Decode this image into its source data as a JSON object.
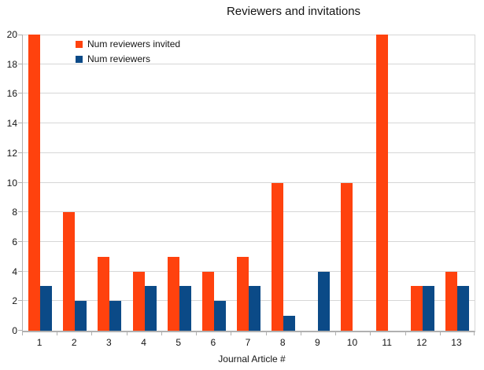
{
  "chart_data": {
    "type": "bar",
    "title": "Reviewers and invitations",
    "xlabel": "Journal Article #",
    "ylabel": "",
    "ylim": [
      0,
      20
    ],
    "ytick_step": 2,
    "grid": true,
    "legend_position": "top-left-inside",
    "categories": [
      "1",
      "2",
      "3",
      "4",
      "5",
      "6",
      "7",
      "8",
      "9",
      "10",
      "11",
      "12",
      "13"
    ],
    "series": [
      {
        "name": "Num reviewers invited",
        "color": "#FF420E",
        "values": [
          20,
          8,
          5,
          4,
          5,
          4,
          5,
          10,
          0,
          10,
          20,
          3,
          4
        ]
      },
      {
        "name": "Num reviewers",
        "color": "#0B4A87",
        "values": [
          3,
          2,
          2,
          3,
          3,
          2,
          3,
          1,
          4,
          0,
          0,
          3,
          3
        ]
      }
    ],
    "colors": {
      "axis": "#B0B0B0",
      "gridline": "#D6D6D6",
      "text": "#141414",
      "background": "#FFFFFF"
    }
  }
}
